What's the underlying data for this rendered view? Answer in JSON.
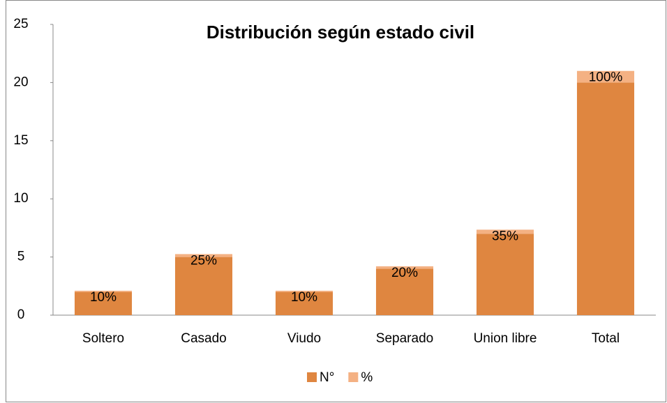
{
  "chart_data": {
    "type": "bar",
    "stacked": true,
    "title": "Distribución según estado civil",
    "categories": [
      "Soltero",
      "Casado",
      "Viudo",
      "Separado",
      "Union libre",
      "Total"
    ],
    "series": [
      {
        "name": "N°",
        "color": "#df8640",
        "values": [
          2,
          5,
          2,
          4,
          7,
          20
        ]
      },
      {
        "name": "%",
        "color": "#f4b183",
        "values": [
          0.1,
          0.25,
          0.1,
          0.2,
          0.35,
          1
        ],
        "value_labels": [
          "10%",
          "25%",
          "10%",
          "20%",
          "35%",
          "100%"
        ]
      }
    ],
    "ylim": [
      0,
      25
    ],
    "yticks": [
      0,
      5,
      10,
      15,
      20,
      25
    ],
    "grid": false,
    "legend": "bottom"
  }
}
